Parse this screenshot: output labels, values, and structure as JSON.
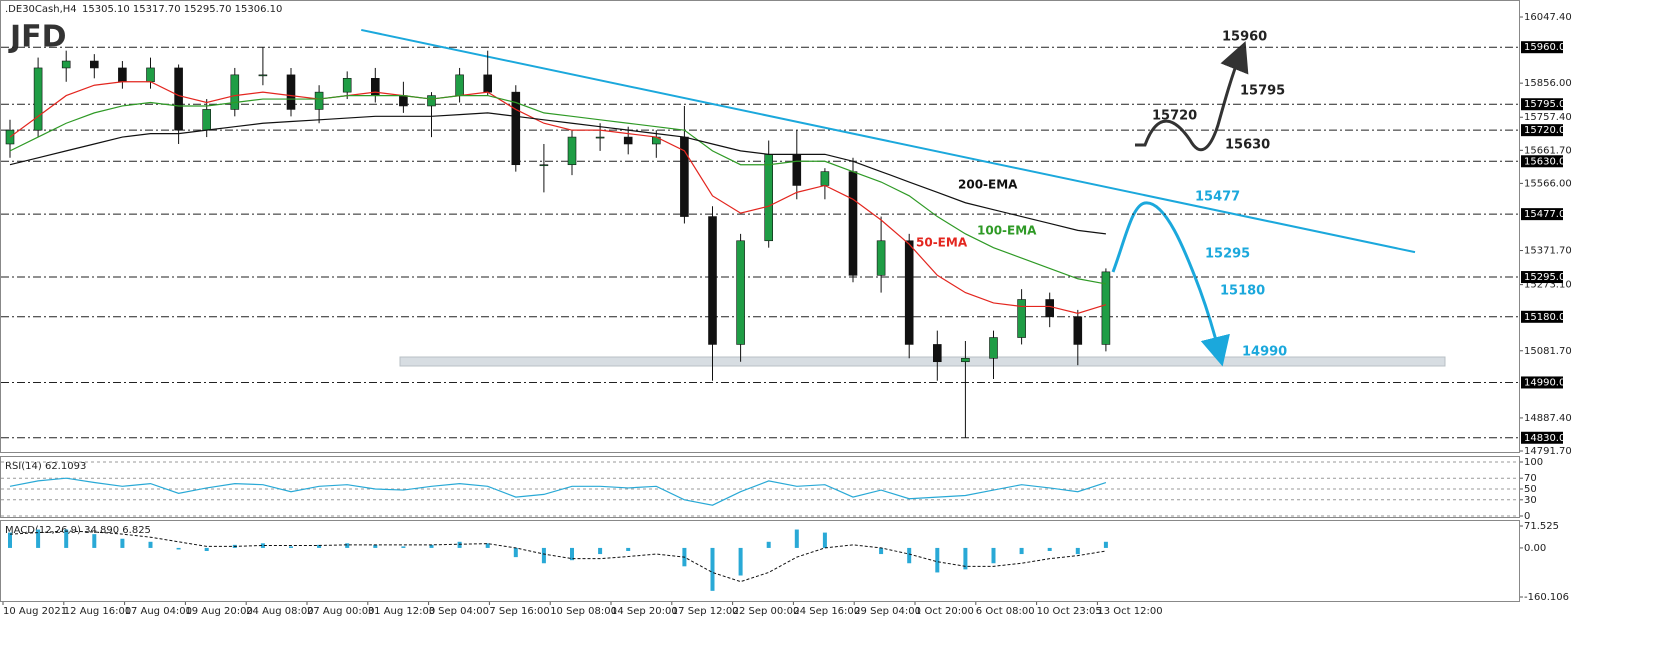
{
  "chart_data": [
    {
      "type": "candlestick",
      "header": {
        "symbol": ".DE30Cash,H4",
        "quote": "15305.10 15317.70 15295.70 15306.10",
        "logo": "JFD"
      },
      "open": [
        15680,
        15720,
        15900,
        15920,
        15900,
        15860,
        15900,
        15720,
        15780,
        15880,
        15880,
        15780,
        15830,
        15870,
        15820,
        15790,
        15820,
        15880,
        15830,
        15620,
        15620,
        15700,
        15700,
        15680,
        15700,
        15470,
        15100,
        15400,
        15650,
        15560,
        15600,
        15300,
        15400,
        15100,
        15050,
        15060,
        15120,
        15230,
        15180,
        15100
      ],
      "high": [
        15750,
        15930,
        15950,
        15940,
        15920,
        15930,
        15910,
        15810,
        15900,
        15960,
        15900,
        15850,
        15890,
        15900,
        15860,
        15830,
        15900,
        15950,
        15850,
        15680,
        15720,
        15740,
        15730,
        15720,
        15790,
        15500,
        15420,
        15690,
        15720,
        15610,
        15640,
        15470,
        15420,
        15140,
        15110,
        15140,
        15260,
        15250,
        15200,
        15320
      ],
      "low": [
        15640,
        15700,
        15860,
        15870,
        15840,
        15840,
        15680,
        15700,
        15760,
        15850,
        15760,
        15740,
        15810,
        15800,
        15770,
        15700,
        15800,
        15820,
        15600,
        15540,
        15590,
        15660,
        15650,
        15640,
        15450,
        14995,
        15050,
        15380,
        15520,
        15520,
        15280,
        15250,
        15060,
        14995,
        14830,
        15000,
        15100,
        15150,
        15040,
        15080
      ],
      "close": [
        15720,
        15900,
        15920,
        15900,
        15860,
        15900,
        15720,
        15780,
        15880,
        15880,
        15780,
        15830,
        15870,
        15820,
        15790,
        15820,
        15880,
        15830,
        15620,
        15620,
        15700,
        15700,
        15680,
        15700,
        15470,
        15100,
        15400,
        15650,
        15560,
        15600,
        15300,
        15400,
        15100,
        15050,
        15060,
        15120,
        15230,
        15180,
        15100,
        15310
      ],
      "bull_color": "#1f9d45",
      "bear_color": "#111111",
      "series": [
        {
          "name": "50-EMA",
          "color": "#e3261f",
          "values": [
            15700,
            15760,
            15820,
            15850,
            15860,
            15860,
            15820,
            15800,
            15820,
            15830,
            15820,
            15810,
            15820,
            15830,
            15820,
            15810,
            15820,
            15830,
            15780,
            15740,
            15720,
            15720,
            15710,
            15700,
            15660,
            15530,
            15480,
            15500,
            15540,
            15560,
            15520,
            15460,
            15390,
            15300,
            15250,
            15220,
            15210,
            15210,
            15190,
            15215
          ]
        },
        {
          "name": "100-EMA",
          "color": "#2f9a26",
          "values": [
            15660,
            15700,
            15740,
            15770,
            15790,
            15800,
            15790,
            15790,
            15800,
            15810,
            15810,
            15810,
            15820,
            15820,
            15820,
            15810,
            15820,
            15820,
            15800,
            15770,
            15760,
            15750,
            15740,
            15730,
            15720,
            15660,
            15620,
            15620,
            15630,
            15630,
            15600,
            15570,
            15530,
            15470,
            15420,
            15380,
            15350,
            15320,
            15290,
            15275
          ]
        },
        {
          "name": "200-EMA",
          "color": "#111111",
          "values": [
            15620,
            15640,
            15660,
            15680,
            15700,
            15710,
            15710,
            15720,
            15730,
            15740,
            15745,
            15750,
            15755,
            15760,
            15760,
            15760,
            15765,
            15770,
            15760,
            15750,
            15740,
            15730,
            15720,
            15710,
            15700,
            15680,
            15660,
            15650,
            15650,
            15650,
            15630,
            15600,
            15570,
            15540,
            15510,
            15490,
            15470,
            15450,
            15430,
            15420
          ]
        }
      ],
      "ylim": [
        14791.7,
        16047.4
      ],
      "yticks": [
        {
          "value": 16047.4,
          "label": "16047.40"
        },
        {
          "value": 15856,
          "label": "15856.00"
        },
        {
          "value": 15757.4,
          "label": "15757.40"
        },
        {
          "value": 15661.7,
          "label": "15661.70"
        },
        {
          "value": 15566,
          "label": "15566.00"
        },
        {
          "value": 15371.7,
          "label": "15371.70"
        },
        {
          "value": 15273.1,
          "label": "15273.10"
        },
        {
          "value": 15081.7,
          "label": "15081.70"
        },
        {
          "value": 14887.4,
          "label": "14887.40"
        },
        {
          "value": 14791.7,
          "label": "14791.70"
        }
      ],
      "levels": [
        {
          "value": 15960,
          "label": "15960.00"
        },
        {
          "value": 15795,
          "label": "15795.00"
        },
        {
          "value": 15720,
          "label": "15720.00"
        },
        {
          "value": 15630,
          "label": "15630.00"
        },
        {
          "value": 15477,
          "label": "15477.00"
        },
        {
          "value": 15295,
          "label": "15295.00"
        },
        {
          "value": 15180,
          "label": "15180.00"
        },
        {
          "value": 14990,
          "label": "14990.00"
        },
        {
          "value": 14830,
          "label": "14830.00"
        }
      ],
      "trendline": {
        "color": "#1ba8dc",
        "start": [
          12.5,
          16010
        ],
        "end": [
          50,
          15367
        ]
      }
    },
    {
      "type": "line",
      "title": "RSI(14) 62.1093",
      "series": [
        {
          "color": "#29a9d6",
          "values": [
            55,
            65,
            70,
            62,
            55,
            60,
            42,
            52,
            60,
            58,
            45,
            55,
            58,
            50,
            48,
            55,
            60,
            55,
            35,
            40,
            55,
            55,
            52,
            55,
            30,
            20,
            45,
            65,
            55,
            58,
            35,
            48,
            32,
            35,
            38,
            48,
            58,
            52,
            45,
            62
          ]
        }
      ],
      "ylim": [
        0,
        100
      ],
      "yticks": [
        100,
        70,
        50,
        30,
        0
      ]
    },
    {
      "type": "macd",
      "title": "MACD(12,26,9) 34.890 6.825",
      "histogram": {
        "color": "#29a9d6",
        "values": [
          50,
          60,
          60,
          45,
          30,
          20,
          -5,
          -10,
          10,
          15,
          5,
          10,
          15,
          10,
          5,
          10,
          20,
          15,
          -30,
          -50,
          -40,
          -20,
          -10,
          0,
          -60,
          -140,
          -90,
          20,
          60,
          50,
          0,
          -20,
          -50,
          -80,
          -70,
          -50,
          -20,
          -10,
          -20,
          20
        ]
      },
      "signal": {
        "color": "#111111",
        "values": [
          45,
          50,
          55,
          52,
          45,
          35,
          20,
          5,
          5,
          8,
          8,
          8,
          10,
          10,
          10,
          10,
          12,
          14,
          0,
          -20,
          -35,
          -35,
          -28,
          -20,
          -30,
          -80,
          -110,
          -80,
          -30,
          0,
          10,
          0,
          -20,
          -45,
          -60,
          -60,
          -50,
          -35,
          -25,
          -10
        ]
      },
      "ylim": [
        -160.106,
        71.525
      ],
      "yticks": [
        71.525,
        {
          "value": 0,
          "label": "0.00"
        },
        -160.106
      ],
      "x_labels": [
        "10 Aug 2021",
        "12 Aug 16:00",
        "17 Aug 04:00",
        "19 Aug 20:00",
        "24 Aug 08:00",
        "27 Aug 00:00",
        "31 Aug 12:00",
        "3 Sep 04:00",
        "7 Sep 16:00",
        "10 Sep 08:00",
        "14 Sep 20:00",
        "17 Sep 12:00",
        "22 Sep 00:00",
        "24 Sep 16:00",
        "29 Sep 04:00",
        "1 Oct 20:00",
        "6 Oct 08:00",
        "10 Oct 23:05",
        "13 Oct 12:00"
      ]
    }
  ]
}
